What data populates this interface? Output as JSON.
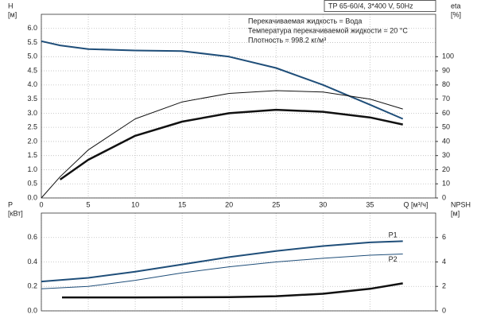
{
  "chart_data": [
    {
      "type": "line",
      "title": "TP 65-60/4, 3*400 V, 50Hz",
      "annotations": [
        "Перекачиваемая жидкость = Вода",
        "Температура перекачиваемой жидкости = 20 °C",
        "Плотность = 998.2 кг/м³"
      ],
      "ylabel": "H",
      "yunit": "[м]",
      "y2label": "eta",
      "y2unit": "[%]",
      "xlabel": "Q [м³/ч]",
      "xlim": [
        0,
        42
      ],
      "xticks": [
        0,
        5,
        10,
        15,
        20,
        25,
        30,
        35
      ],
      "ylim": [
        0,
        6.5
      ],
      "yticks": [
        {
          "value": 0,
          "label": "0.0"
        },
        {
          "value": 0.5,
          "label": "0.5"
        },
        {
          "value": 1,
          "label": "1.0"
        },
        {
          "value": 1.5,
          "label": "1.5"
        },
        {
          "value": 2,
          "label": "2.0"
        },
        {
          "value": 2.5,
          "label": "2.5"
        },
        {
          "value": 3,
          "label": "3.0"
        },
        {
          "value": 3.5,
          "label": "3.5"
        },
        {
          "value": 4,
          "label": "4.0"
        },
        {
          "value": 4.5,
          "label": "4.5"
        },
        {
          "value": 5,
          "label": "5.0"
        },
        {
          "value": 5.5,
          "label": "5.5"
        },
        {
          "value": 6,
          "label": "6.0"
        }
      ],
      "y2lim": [
        0,
        130
      ],
      "y2ticks": [
        0,
        10,
        20,
        30,
        40,
        50,
        60,
        70,
        80,
        90,
        100
      ],
      "grid": true,
      "series": [
        {
          "color": "#1f4e79",
          "line_width": 2,
          "x": [
            0,
            2,
            5,
            10,
            15,
            20,
            25,
            30,
            35,
            38.5
          ],
          "values": [
            5.55,
            5.4,
            5.27,
            5.22,
            5.2,
            5.0,
            4.6,
            4.0,
            3.3,
            2.8
          ]
        },
        {
          "color": "#111111",
          "line_width": 1,
          "axis": "y2",
          "x": [
            0,
            2,
            5,
            10,
            15,
            20,
            25,
            30,
            35,
            38.5
          ],
          "values": [
            0,
            15,
            34,
            56,
            68,
            74,
            76,
            75,
            70,
            63
          ]
        },
        {
          "color": "#111111",
          "line_width": 2.5,
          "axis": "y2",
          "x": [
            2,
            5,
            10,
            15,
            20,
            25,
            30,
            35,
            38.5
          ],
          "values": [
            13,
            27,
            44,
            54,
            60,
            62.4,
            61,
            57,
            52
          ]
        }
      ]
    },
    {
      "type": "line",
      "ylabel": "P",
      "yunit": "[кВт]",
      "y2label": "NPSH",
      "y2unit": "[м]",
      "xlim": [
        0,
        42
      ],
      "ylim": [
        0,
        0.8
      ],
      "yticks": [
        {
          "value": 0,
          "label": "0.0"
        },
        {
          "value": 0.2,
          "label": "0.2"
        },
        {
          "value": 0.4,
          "label": "0.4"
        },
        {
          "value": 0.6,
          "label": "0.6"
        }
      ],
      "y2lim": [
        0,
        8
      ],
      "y2ticks": [
        0,
        2,
        4,
        6
      ],
      "grid": true,
      "series": [
        {
          "name": "P1",
          "color": "#1f4e79",
          "line_width": 2,
          "x": [
            0,
            5,
            10,
            15,
            20,
            25,
            30,
            35,
            38.5
          ],
          "values": [
            0.24,
            0.27,
            0.32,
            0.38,
            0.44,
            0.49,
            0.53,
            0.56,
            0.57
          ]
        },
        {
          "name": "P2",
          "color": "#1f4e79",
          "line_width": 1,
          "x": [
            0,
            5,
            10,
            15,
            20,
            25,
            30,
            35,
            38.5
          ],
          "values": [
            0.18,
            0.2,
            0.25,
            0.31,
            0.36,
            0.4,
            0.43,
            0.455,
            0.465
          ]
        },
        {
          "color": "#111111",
          "line_width": 2.5,
          "axis": "y2",
          "x": [
            2.2,
            10,
            20,
            25,
            30,
            35,
            38.5
          ],
          "values": [
            1.1,
            1.1,
            1.12,
            1.2,
            1.4,
            1.8,
            2.25
          ]
        }
      ]
    }
  ]
}
